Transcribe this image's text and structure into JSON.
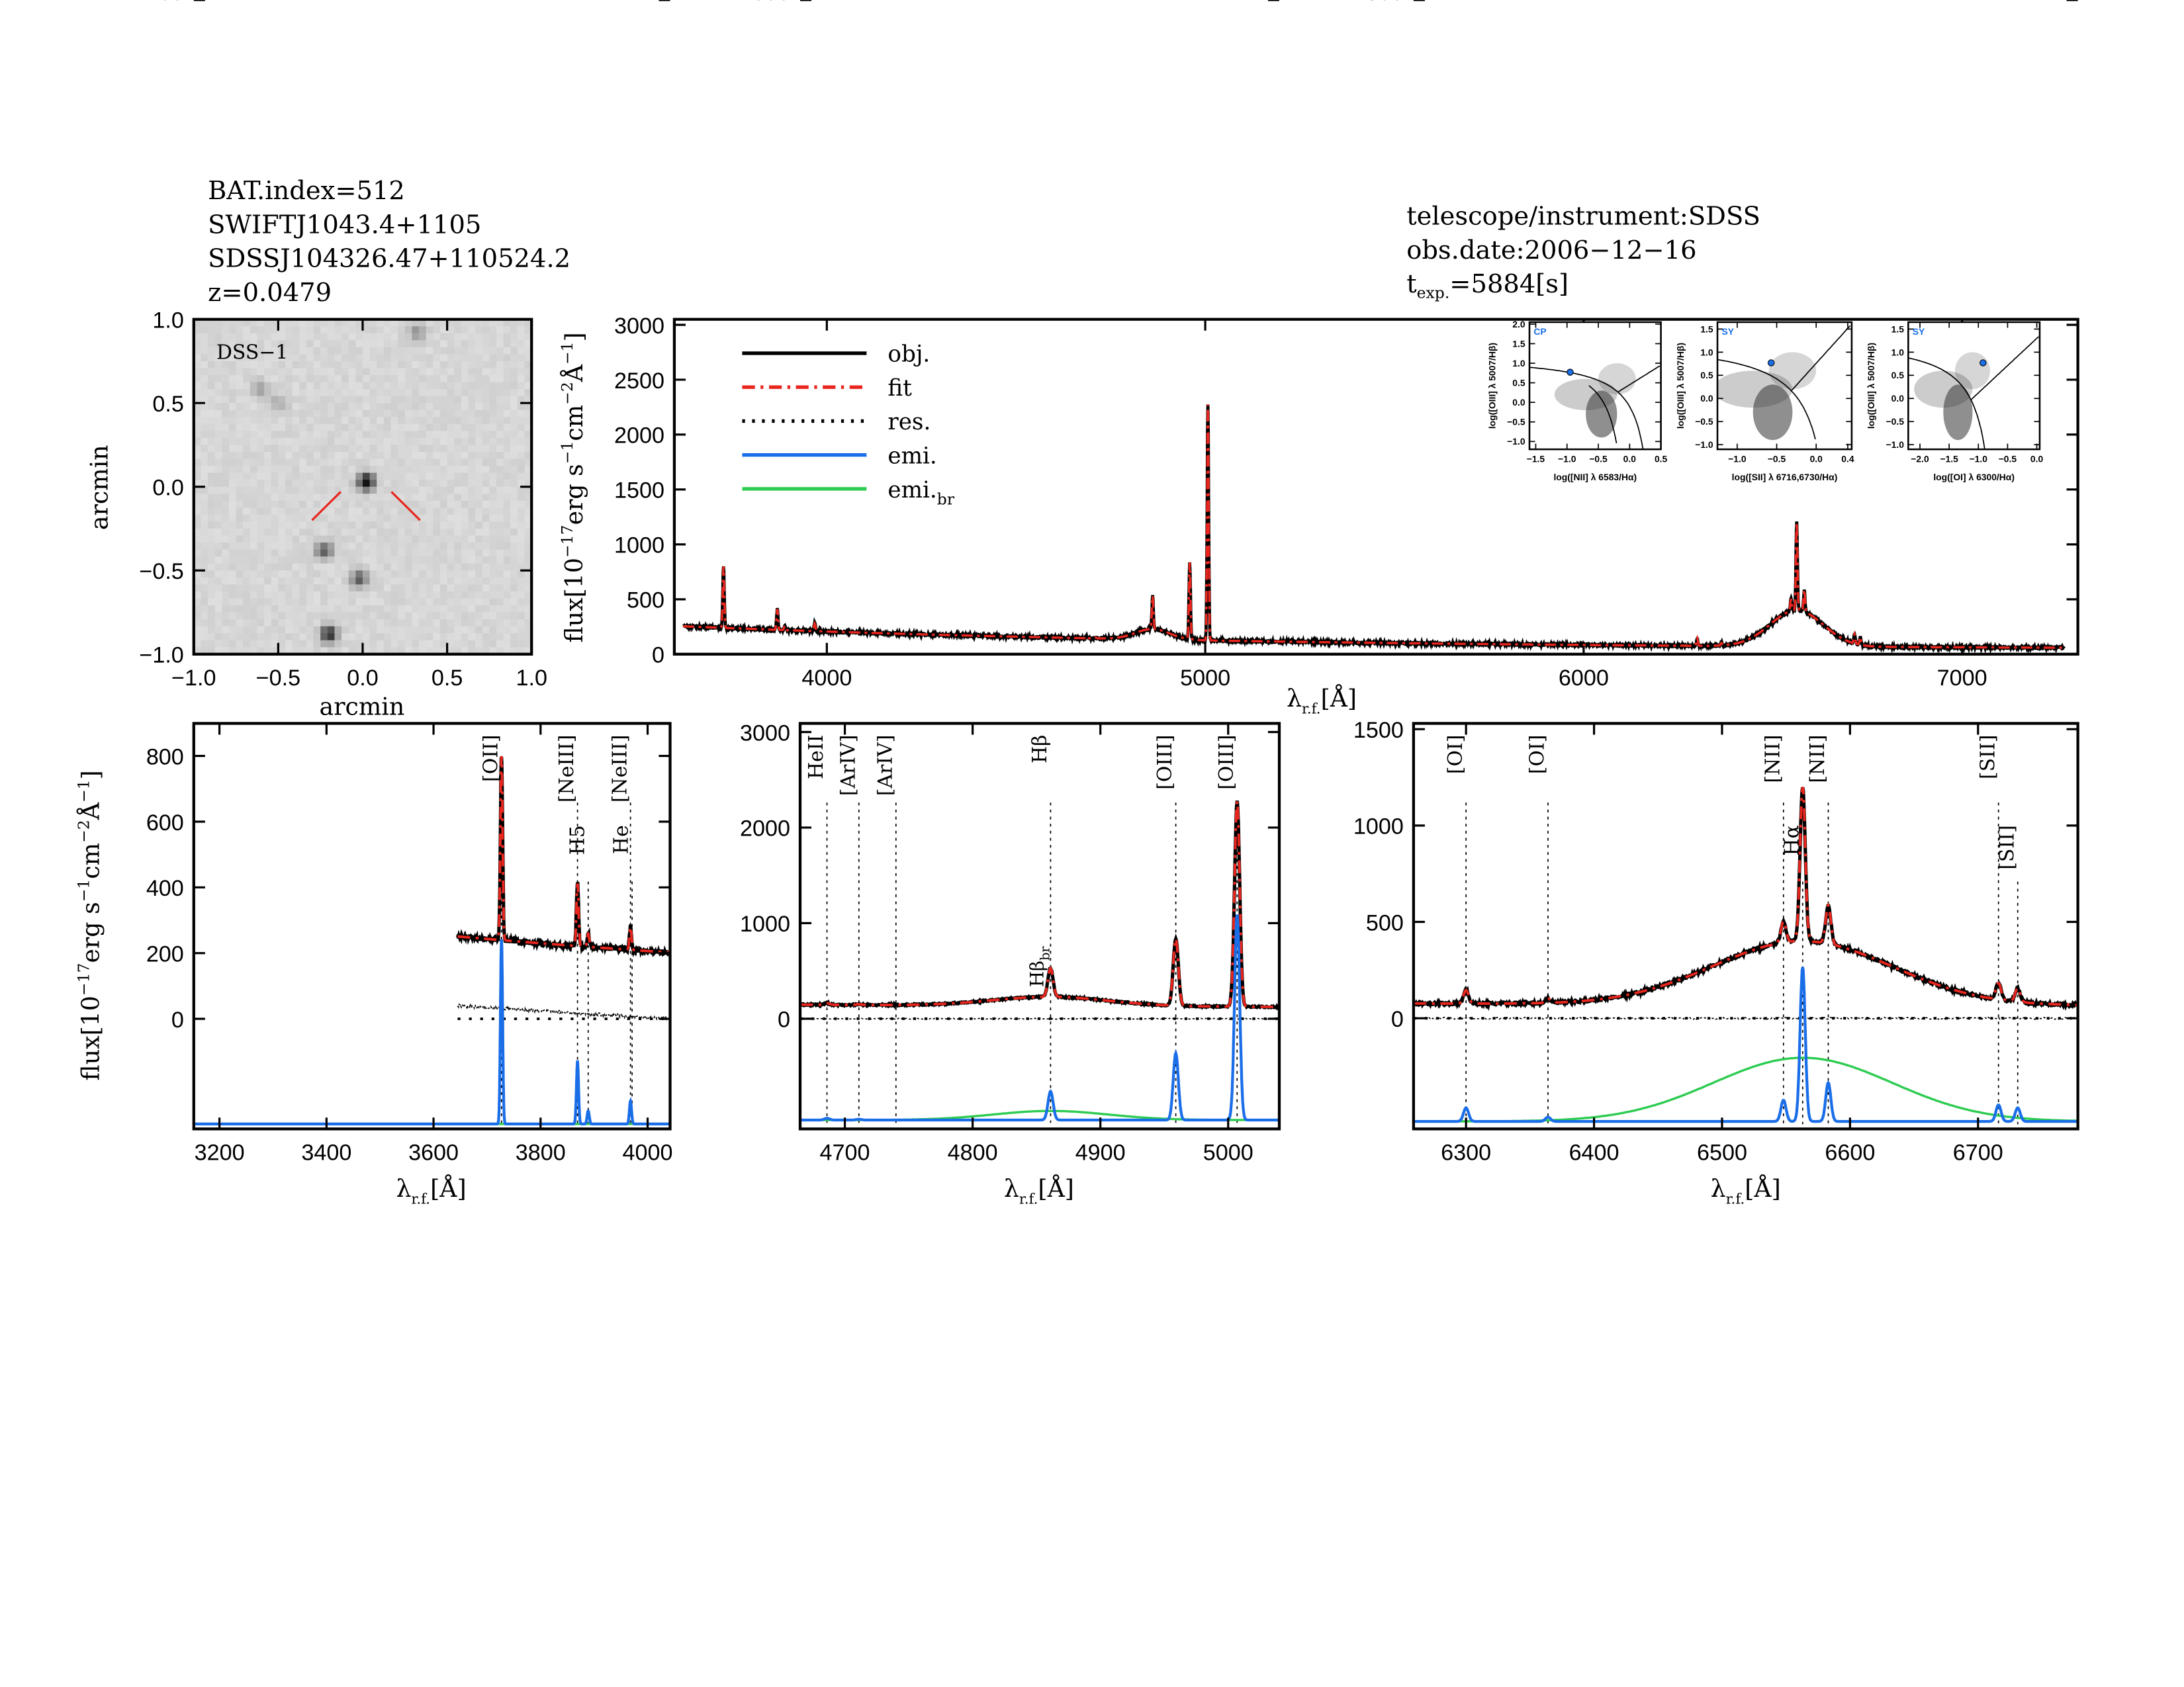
{
  "header_left": [
    "BAT.index=512",
    "SWIFTJ1043.4+1105",
    "SDSSJ104326.47+110524.2",
    "z=0.0479"
  ],
  "header_right": {
    "telescope": "telescope/instrument:SDSS",
    "date": "obs.date:2006−12−16",
    "texp_prefix": "t",
    "texp_sub": "exp.",
    "texp_value": "=5884[s]"
  },
  "axis_labels": {
    "flux_main": "flux[10",
    "flux_exp1": "−17",
    "flux_mid": "erg s",
    "flux_exp2": "−1",
    "flux_cm": "cm",
    "flux_exp3": "−2",
    "flux_A": "Å",
    "flux_exp4": "−1",
    "flux_end": "]",
    "lambda": "λ",
    "lambda_sub": "r.f.",
    "lambda_unit": "[Å]",
    "arcmin": "arcmin"
  },
  "chart_data": [
    {
      "id": "dss",
      "type": "heatmap",
      "title": "DSS−1",
      "xlabel": "arcmin",
      "ylabel": "arcmin",
      "xlim": [
        -1.0,
        1.0
      ],
      "ylim": [
        -1.0,
        1.0
      ],
      "xticks": [
        "−1.0",
        "−0.5",
        "0.0",
        "0.5",
        "1.0"
      ],
      "yticks": [
        "1.0",
        "0.5",
        "0.0",
        "−0.5",
        "−1.0"
      ],
      "sources": [
        {
          "x": 0.02,
          "y": 0.03,
          "v": 1.0
        },
        {
          "x": -0.23,
          "y": -0.38,
          "v": 0.6
        },
        {
          "x": -0.02,
          "y": -0.55,
          "v": 0.6
        },
        {
          "x": -0.2,
          "y": -0.88,
          "v": 0.8
        },
        {
          "x": 0.32,
          "y": 0.92,
          "v": 0.3
        },
        {
          "x": -0.6,
          "y": 0.58,
          "v": 0.25
        },
        {
          "x": -0.5,
          "y": 0.5,
          "v": 0.2
        }
      ]
    },
    {
      "id": "full",
      "type": "line",
      "xlim": [
        3597,
        7306
      ],
      "ylim": [
        0,
        3050
      ],
      "xticks": [
        4000,
        5000,
        6000,
        7000
      ],
      "yticks": [
        0,
        500,
        1000,
        1500,
        2000,
        2500,
        3000
      ],
      "legend": {
        "placement": "top-left",
        "entries": [
          {
            "label": "obj.",
            "color": "#000000",
            "style": "solid"
          },
          {
            "label": "fit",
            "color": "#e8261e",
            "style": "dashdot"
          },
          {
            "label": "res.",
            "color": "#000000",
            "style": "dotted"
          },
          {
            "label": "emi.",
            "color": "#1a6ee8",
            "style": "solid"
          },
          {
            "label": "emi.",
            "sub": "br",
            "color": "#2ecc52",
            "style": "solid"
          }
        ]
      }
    },
    {
      "id": "oii",
      "type": "line",
      "xlim": [
        3152,
        4042
      ],
      "ylim": [
        -335,
        899
      ],
      "data_xrange": [
        3645,
        4042
      ],
      "xticks": [
        3200,
        3400,
        3600,
        3800,
        4000
      ],
      "yticks": [
        -200,
        0,
        200,
        400,
        600,
        800
      ],
      "emi_base": -320,
      "lines": [
        {
          "label": "[OII]",
          "wl": 3727
        },
        {
          "label": "[NeIII]",
          "wl": 3869
        },
        {
          "label": "H5",
          "wl": 3889
        },
        {
          "label": "[NeIII]",
          "wl": 3968
        },
        {
          "label": "He",
          "wl": 3971
        }
      ]
    },
    {
      "id": "hb",
      "type": "line",
      "xlim": [
        4665,
        5040
      ],
      "ylim": [
        -1153,
        3090
      ],
      "xticks": [
        4700,
        4800,
        4900,
        5000
      ],
      "yticks": [
        -1000,
        0,
        1000,
        2000,
        3000
      ],
      "emi_base": -1060,
      "lines": [
        {
          "label": "HeII",
          "wl": 4686
        },
        {
          "label": "[ArIV]",
          "wl": 4711
        },
        {
          "label": "[ArIV]",
          "wl": 4740
        },
        {
          "label": "Hβ",
          "wl": 4861
        },
        {
          "label": "[OIII]",
          "wl": 4959
        },
        {
          "label": "[OIII]",
          "wl": 5007
        }
      ],
      "broad_label": {
        "text": "Hβ",
        "sub": "br"
      }
    },
    {
      "id": "ha",
      "type": "line",
      "xlim": [
        6259,
        6778
      ],
      "ylim": [
        -574,
        1530
      ],
      "xticks": [
        6300,
        6400,
        6500,
        6600,
        6700
      ],
      "yticks": [
        -500,
        0,
        500,
        1000,
        1500
      ],
      "emi_base": -535,
      "lines": [
        {
          "label": "[OI]",
          "wl": 6300
        },
        {
          "label": "[OI]",
          "wl": 6364
        },
        {
          "label": "[NII]",
          "wl": 6548
        },
        {
          "label": "Hα",
          "wl": 6563
        },
        {
          "label": "[NII]",
          "wl": 6583
        },
        {
          "label": "[SII]",
          "wl": 6716
        },
        {
          "label": "[SII]",
          "wl": 6731
        }
      ]
    },
    {
      "id": "bpt_nii",
      "type": "scatter",
      "class": "CP",
      "xlabel": "log([NII] λ 6583/Hα)",
      "ylabel": "log([OIII] λ 5007/Hβ)",
      "xlim": [
        -1.6,
        0.5
      ],
      "ylim": [
        -1.2,
        2.05
      ],
      "xticks": [
        "−1.5",
        "−1.0",
        "−0.5",
        "0.0",
        "0.5"
      ],
      "xtickv": [
        -1.5,
        -1.0,
        -0.5,
        0.0,
        0.5
      ],
      "yticks": [
        "2.0",
        "1.5",
        "1.0",
        "0.5",
        "0.0",
        "−0.5",
        "−1.0"
      ],
      "ytickv": [
        2.0,
        1.5,
        1.0,
        0.5,
        0.0,
        -0.5,
        -1.0
      ],
      "point": [
        -0.95,
        0.77
      ]
    },
    {
      "id": "bpt_sii",
      "type": "scatter",
      "class": "SY",
      "xlabel": "log([SII] λ 6716,6730/Hα)",
      "ylabel": "log([OIII] λ 5007/Hβ)",
      "xlim": [
        -1.25,
        0.45
      ],
      "ylim": [
        -1.1,
        1.65
      ],
      "xticks": [
        "−1.0",
        "−0.5",
        "0.0",
        "0.4"
      ],
      "xtickv": [
        -1.0,
        -0.5,
        0.0,
        0.4
      ],
      "yticks": [
        "1.5",
        "1.0",
        "0.5",
        "0.0",
        "−0.5",
        "−1.0"
      ],
      "ytickv": [
        1.5,
        1.0,
        0.5,
        0.0,
        -0.5,
        -1.0
      ],
      "point": [
        -0.57,
        0.77
      ]
    },
    {
      "id": "bpt_oi",
      "type": "scatter",
      "class": "SY",
      "xlabel": "log([OI] λ 6300/Hα)",
      "ylabel": "log([OIII] λ 5007/Hβ)",
      "xlim": [
        -2.2,
        0.05
      ],
      "ylim": [
        -1.1,
        1.65
      ],
      "xticks": [
        "−2.0",
        "−1.5",
        "−1.0",
        "−0.5",
        "0.0"
      ],
      "xtickv": [
        -2.0,
        -1.5,
        -1.0,
        -0.5,
        0.0
      ],
      "yticks": [
        "1.5",
        "1.0",
        "0.5",
        "0.0",
        "−0.5",
        "−1.0"
      ],
      "ytickv": [
        1.5,
        1.0,
        0.5,
        0.0,
        -0.5,
        -1.0
      ],
      "point": [
        -0.92,
        0.77
      ]
    }
  ],
  "model": {
    "narrow_sigma": 2.0,
    "narrow": [
      [
        3727,
        560
      ],
      [
        3869,
        190
      ],
      [
        3889,
        40
      ],
      [
        3968,
        70
      ],
      [
        4686,
        18
      ],
      [
        4711,
        8
      ],
      [
        4861,
        300
      ],
      [
        4959,
        700
      ],
      [
        5007,
        2150
      ],
      [
        6300,
        70
      ],
      [
        6364,
        22
      ],
      [
        6548,
        110
      ],
      [
        6563,
        800
      ],
      [
        6583,
        200
      ],
      [
        6716,
        85
      ],
      [
        6731,
        70
      ]
    ],
    "broad": [
      [
        4861,
        95,
        45
      ],
      [
        6563,
        330,
        70
      ]
    ]
  },
  "colors": {
    "obj": "#000000",
    "fit": "#e8261e",
    "emi": "#1a6ee8",
    "emi_br": "#2ecc52",
    "bpt_point": "#1a6ee8",
    "class_label": "#1a6ee8"
  }
}
